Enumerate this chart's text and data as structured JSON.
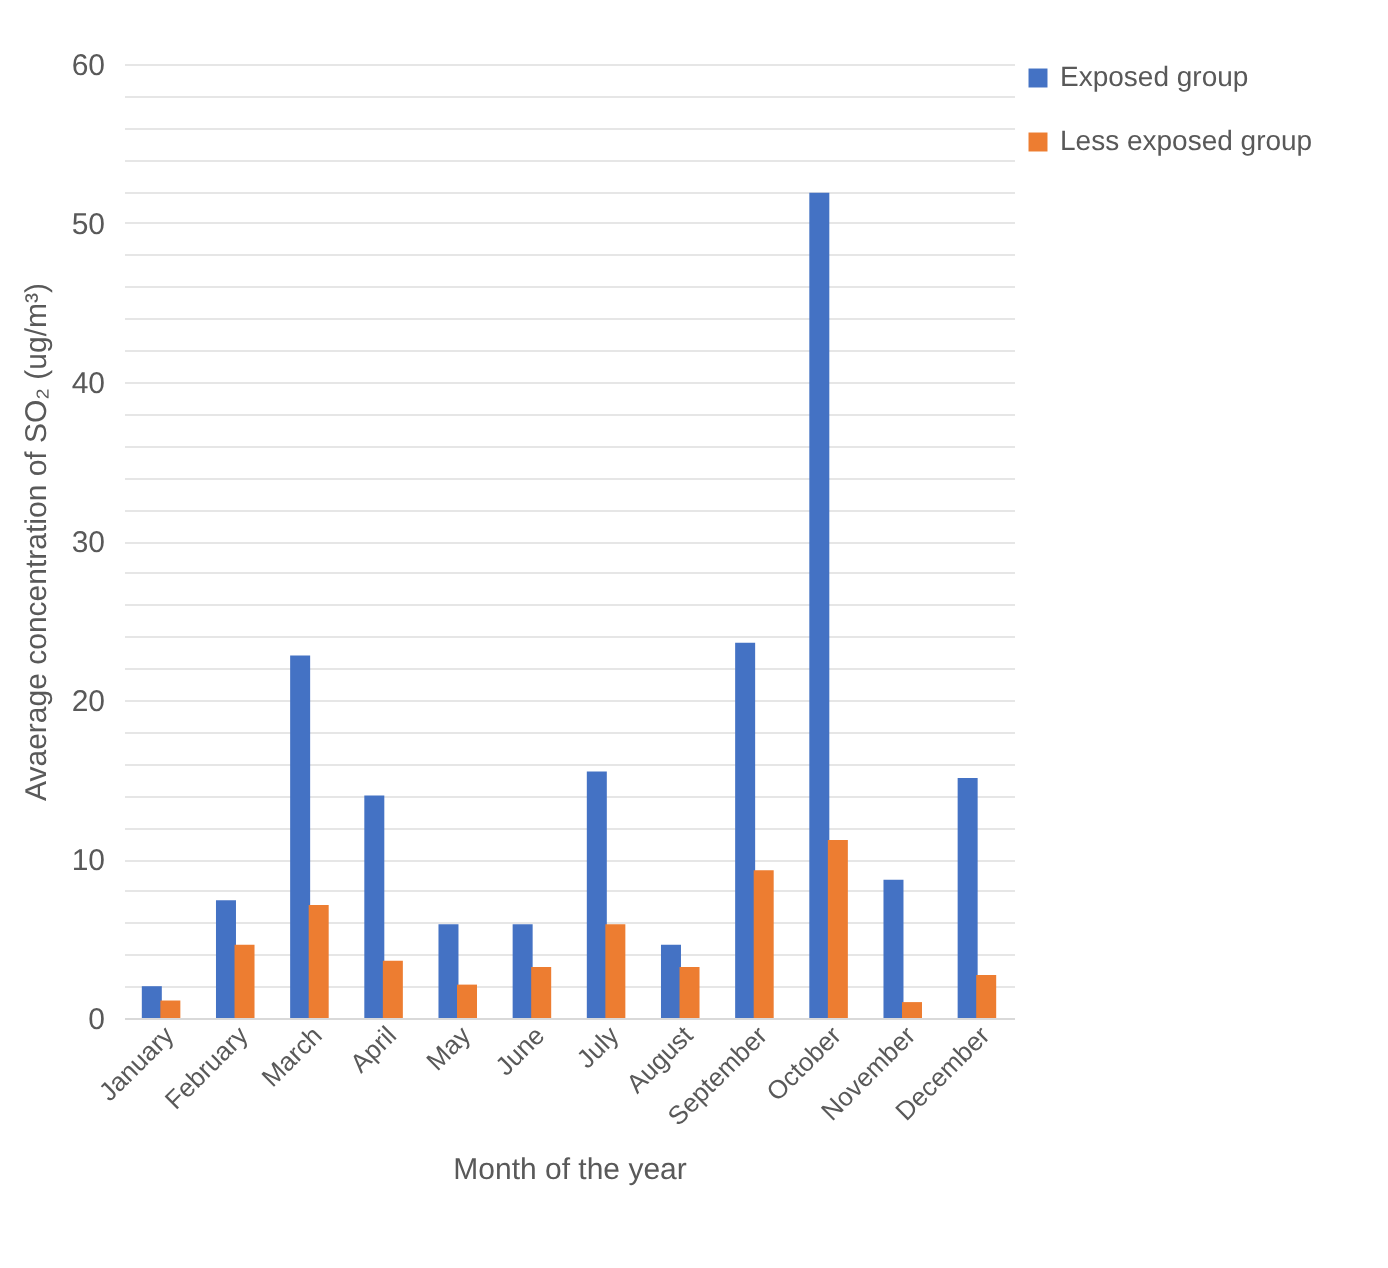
{
  "chart_data": {
    "type": "bar",
    "xlabel": "Month of the year",
    "ylabel": "Avaerage concentration of SO₂ (ug/m³)",
    "categories": [
      "January",
      "February",
      "March",
      "April",
      "May",
      "June",
      "July",
      "August",
      "September",
      "October",
      "November",
      "December"
    ],
    "series": [
      {
        "name": "Exposed group",
        "color": "#4472c4",
        "values": [
          2.0,
          7.4,
          22.8,
          14.0,
          5.9,
          5.9,
          15.5,
          4.6,
          23.6,
          51.9,
          8.7,
          15.1
        ]
      },
      {
        "name": "Less exposed group",
        "color": "#ed7d31",
        "values": [
          1.1,
          4.6,
          7.1,
          3.6,
          2.1,
          3.2,
          5.9,
          3.2,
          9.3,
          11.2,
          1.0,
          2.7
        ]
      }
    ],
    "ylim": [
      0,
      60
    ],
    "yticks": [
      0,
      {
        "value": 2,
        "label": null
      },
      {
        "value": 4,
        "label": null
      },
      {
        "value": 6,
        "label": null
      },
      {
        "value": 8,
        "label": null
      },
      10,
      {
        "value": 12,
        "label": null
      },
      {
        "value": 14,
        "label": null
      },
      {
        "value": 16,
        "label": null
      },
      {
        "value": 18,
        "label": null
      },
      20,
      {
        "value": 22,
        "label": null
      },
      {
        "value": 24,
        "label": null
      },
      {
        "value": 26,
        "label": null
      },
      {
        "value": 28,
        "label": null
      },
      30,
      {
        "value": 32,
        "label": null
      },
      {
        "value": 34,
        "label": null
      },
      {
        "value": 36,
        "label": null
      },
      {
        "value": 38,
        "label": null
      },
      40,
      {
        "value": 42,
        "label": null
      },
      {
        "value": 44,
        "label": null
      },
      {
        "value": 46,
        "label": null
      },
      {
        "value": 48,
        "label": null
      },
      50,
      {
        "value": 52,
        "label": null
      },
      {
        "value": 54,
        "label": null
      },
      {
        "value": 56,
        "label": null
      },
      {
        "value": 58,
        "label": null
      },
      60
    ],
    "grid": "y",
    "legend": "right"
  }
}
